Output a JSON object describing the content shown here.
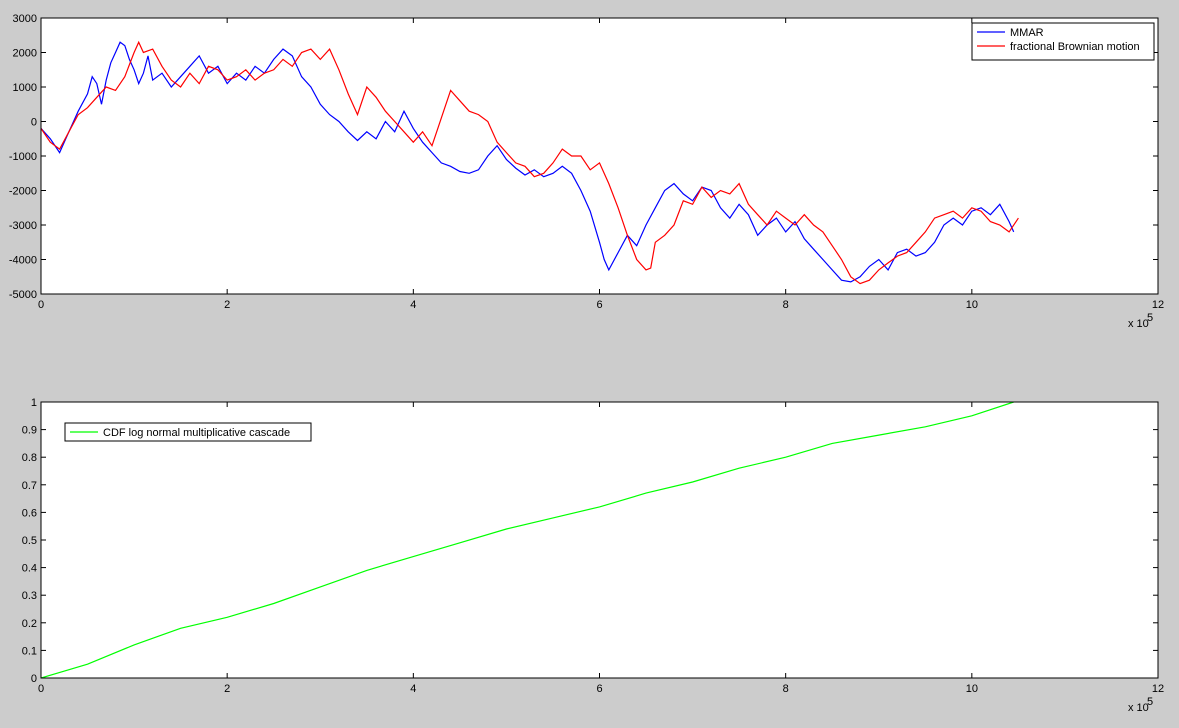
{
  "chart_data": [
    {
      "type": "line",
      "title": "",
      "xlabel": "",
      "ylabel": "",
      "x_multiplier_label": "x 10",
      "x_multiplier_exponent": "5",
      "xlim": [
        0,
        12
      ],
      "ylim": [
        -5000,
        3000
      ],
      "xticks": [
        0,
        2,
        4,
        6,
        8,
        10,
        12
      ],
      "yticks": [
        -5000,
        -4000,
        -3000,
        -2000,
        -1000,
        0,
        1000,
        2000,
        3000
      ],
      "grid": false,
      "legend_position": "top-right",
      "series": [
        {
          "name": "MMAR",
          "color": "#0000ff",
          "x": [
            0,
            0.1,
            0.2,
            0.3,
            0.4,
            0.5,
            0.55,
            0.6,
            0.65,
            0.7,
            0.75,
            0.8,
            0.85,
            0.9,
            0.95,
            1.0,
            1.05,
            1.1,
            1.15,
            1.2,
            1.3,
            1.4,
            1.5,
            1.6,
            1.7,
            1.8,
            1.9,
            2.0,
            2.1,
            2.2,
            2.3,
            2.4,
            2.5,
            2.6,
            2.7,
            2.8,
            2.9,
            3.0,
            3.1,
            3.2,
            3.3,
            3.4,
            3.5,
            3.6,
            3.7,
            3.8,
            3.9,
            4.0,
            4.1,
            4.2,
            4.3,
            4.4,
            4.5,
            4.6,
            4.7,
            4.8,
            4.9,
            5.0,
            5.1,
            5.2,
            5.3,
            5.4,
            5.5,
            5.6,
            5.7,
            5.8,
            5.9,
            6.0,
            6.05,
            6.1,
            6.2,
            6.3,
            6.4,
            6.5,
            6.6,
            6.7,
            6.8,
            6.9,
            7.0,
            7.1,
            7.2,
            7.3,
            7.4,
            7.5,
            7.6,
            7.7,
            7.8,
            7.9,
            8.0,
            8.1,
            8.2,
            8.3,
            8.4,
            8.5,
            8.6,
            8.7,
            8.8,
            8.9,
            9.0,
            9.1,
            9.2,
            9.3,
            9.4,
            9.5,
            9.6,
            9.7,
            9.8,
            9.9,
            10.0,
            10.1,
            10.2,
            10.3,
            10.4,
            10.45
          ],
          "values": [
            -200,
            -500,
            -900,
            -300,
            300,
            800,
            1300,
            1100,
            500,
            1200,
            1700,
            2000,
            2300,
            2200,
            1800,
            1500,
            1100,
            1400,
            1900,
            1200,
            1400,
            1000,
            1300,
            1600,
            1900,
            1400,
            1600,
            1100,
            1400,
            1200,
            1600,
            1400,
            1800,
            2100,
            1900,
            1300,
            1000,
            500,
            200,
            0,
            -300,
            -550,
            -300,
            -500,
            0,
            -300,
            300,
            -200,
            -600,
            -900,
            -1200,
            -1300,
            -1450,
            -1500,
            -1400,
            -1000,
            -700,
            -1100,
            -1350,
            -1550,
            -1400,
            -1600,
            -1500,
            -1300,
            -1500,
            -2000,
            -2600,
            -3500,
            -4000,
            -4300,
            -3800,
            -3300,
            -3600,
            -3000,
            -2500,
            -2000,
            -1800,
            -2100,
            -2300,
            -1900,
            -2000,
            -2500,
            -2800,
            -2400,
            -2700,
            -3300,
            -3000,
            -2800,
            -3200,
            -2900,
            -3400,
            -3700,
            -4000,
            -4300,
            -4600,
            -4650,
            -4500,
            -4200,
            -4000,
            -4300,
            -3800,
            -3700,
            -3900,
            -3800,
            -3500,
            -3000,
            -2800,
            -3000,
            -2600,
            -2500,
            -2700,
            -2400,
            -2900,
            -3200
          ]
        },
        {
          "name": "fractional Brownian motion",
          "color": "#ff0000",
          "x": [
            0,
            0.1,
            0.2,
            0.3,
            0.4,
            0.5,
            0.6,
            0.7,
            0.8,
            0.9,
            1.0,
            1.05,
            1.1,
            1.2,
            1.3,
            1.4,
            1.5,
            1.6,
            1.7,
            1.8,
            1.9,
            2.0,
            2.1,
            2.2,
            2.3,
            2.4,
            2.5,
            2.6,
            2.7,
            2.8,
            2.9,
            3.0,
            3.1,
            3.2,
            3.3,
            3.4,
            3.5,
            3.6,
            3.7,
            3.8,
            3.9,
            4.0,
            4.1,
            4.2,
            4.3,
            4.4,
            4.5,
            4.6,
            4.7,
            4.8,
            4.9,
            5.0,
            5.1,
            5.2,
            5.3,
            5.4,
            5.5,
            5.6,
            5.7,
            5.8,
            5.9,
            6.0,
            6.1,
            6.2,
            6.3,
            6.4,
            6.5,
            6.55,
            6.6,
            6.7,
            6.8,
            6.9,
            7.0,
            7.1,
            7.2,
            7.3,
            7.4,
            7.5,
            7.6,
            7.7,
            7.8,
            7.9,
            8.0,
            8.1,
            8.2,
            8.3,
            8.4,
            8.5,
            8.6,
            8.7,
            8.8,
            8.9,
            9.0,
            9.1,
            9.2,
            9.3,
            9.4,
            9.5,
            9.6,
            9.7,
            9.8,
            9.9,
            10.0,
            10.1,
            10.2,
            10.3,
            10.4,
            10.5
          ],
          "values": [
            -200,
            -600,
            -800,
            -300,
            200,
            400,
            700,
            1000,
            900,
            1300,
            2000,
            2300,
            2000,
            2100,
            1600,
            1200,
            1000,
            1400,
            1100,
            1600,
            1500,
            1200,
            1300,
            1500,
            1200,
            1400,
            1500,
            1800,
            1600,
            2000,
            2100,
            1800,
            2100,
            1500,
            800,
            200,
            1000,
            700,
            300,
            0,
            -300,
            -600,
            -300,
            -700,
            100,
            900,
            600,
            300,
            200,
            0,
            -600,
            -900,
            -1200,
            -1300,
            -1600,
            -1500,
            -1200,
            -800,
            -1000,
            -1000,
            -1400,
            -1200,
            -1800,
            -2500,
            -3300,
            -4000,
            -4300,
            -4250,
            -3500,
            -3300,
            -3000,
            -2300,
            -2400,
            -1900,
            -2200,
            -2000,
            -2100,
            -1800,
            -2400,
            -2700,
            -3000,
            -2600,
            -2800,
            -3000,
            -2700,
            -3000,
            -3200,
            -3600,
            -4000,
            -4500,
            -4700,
            -4600,
            -4300,
            -4100,
            -3900,
            -3800,
            -3500,
            -3200,
            -2800,
            -2700,
            -2600,
            -2800,
            -2500,
            -2600,
            -2900,
            -3000,
            -3200,
            -2800
          ]
        }
      ]
    },
    {
      "type": "line",
      "title": "",
      "xlabel": "",
      "ylabel": "",
      "x_multiplier_label": "x 10",
      "x_multiplier_exponent": "5",
      "xlim": [
        0,
        12
      ],
      "ylim": [
        0,
        1
      ],
      "xticks": [
        0,
        2,
        4,
        6,
        8,
        10,
        12
      ],
      "yticks": [
        0,
        0.1,
        0.2,
        0.3,
        0.4,
        0.5,
        0.6,
        0.7,
        0.8,
        0.9,
        1
      ],
      "grid": false,
      "legend_position": "top-left",
      "series": [
        {
          "name": "CDF log normal multiplicative cascade",
          "color": "#00ff00",
          "x": [
            0,
            0.5,
            1.0,
            1.5,
            2.0,
            2.5,
            3.0,
            3.5,
            4.0,
            4.5,
            5.0,
            5.5,
            6.0,
            6.5,
            7.0,
            7.5,
            8.0,
            8.5,
            9.0,
            9.5,
            10.0,
            10.45
          ],
          "values": [
            0.0,
            0.05,
            0.12,
            0.18,
            0.22,
            0.27,
            0.33,
            0.39,
            0.44,
            0.49,
            0.54,
            0.58,
            0.62,
            0.67,
            0.71,
            0.76,
            0.8,
            0.85,
            0.88,
            0.91,
            0.95,
            1.0
          ]
        }
      ]
    }
  ]
}
